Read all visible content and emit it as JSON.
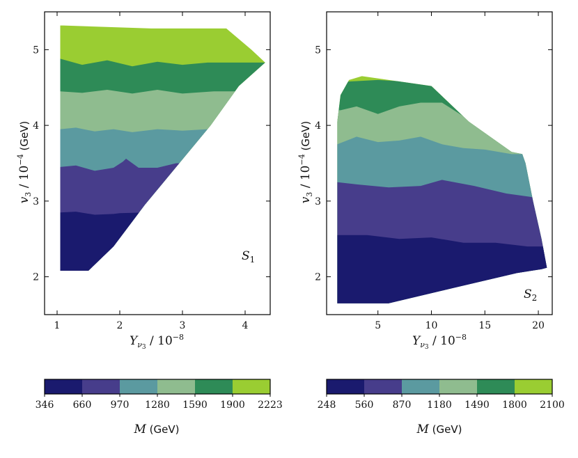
{
  "chart_data": [
    {
      "type": "heatmap",
      "subtype": "filled-contour",
      "panel_label": "S",
      "panel_label_sub": "1",
      "xlabel": "Y_{ν3} / 10^{-8}",
      "ylabel": "v_3 / 10^{-4} (GeV)",
      "xlim": [
        0.8,
        4.4
      ],
      "ylim": [
        1.5,
        5.5
      ],
      "xticks": [
        1,
        2,
        3,
        4
      ],
      "yticks": [
        2,
        3,
        4,
        5
      ],
      "region_outline": [
        [
          1.05,
          2.08
        ],
        [
          1.5,
          2.08
        ],
        [
          1.9,
          2.4
        ],
        [
          2.4,
          2.95
        ],
        [
          2.95,
          3.5
        ],
        [
          3.45,
          4.0
        ],
        [
          3.9,
          4.52
        ],
        [
          4.32,
          4.83
        ],
        [
          4.1,
          5.0
        ],
        [
          3.7,
          5.28
        ],
        [
          2.5,
          5.28
        ],
        [
          1.1,
          5.32
        ],
        [
          1.05,
          5.32
        ]
      ],
      "band_boundaries": [
        {
          "level_from": 346,
          "level_to": 660,
          "y_upper": [
            [
              1.05,
              2.85
            ],
            [
              1.3,
              2.86
            ],
            [
              1.6,
              2.82
            ],
            [
              1.9,
              2.83
            ],
            [
              2.0,
              2.84
            ],
            [
              2.4,
              2.85
            ]
          ]
        },
        {
          "level_from": 660,
          "level_to": 970,
          "y_upper": [
            [
              1.05,
              3.45
            ],
            [
              1.3,
              3.47
            ],
            [
              1.6,
              3.4
            ],
            [
              1.9,
              3.44
            ],
            [
              2.05,
              3.52
            ],
            [
              2.1,
              3.56
            ],
            [
              2.3,
              3.44
            ],
            [
              2.6,
              3.44
            ],
            [
              2.9,
              3.5
            ],
            [
              3.0,
              3.5
            ]
          ]
        },
        {
          "level_from": 970,
          "level_to": 1280,
          "y_upper": [
            [
              1.05,
              3.95
            ],
            [
              1.3,
              3.97
            ],
            [
              1.6,
              3.92
            ],
            [
              1.9,
              3.95
            ],
            [
              2.2,
              3.91
            ],
            [
              2.6,
              3.95
            ],
            [
              3.0,
              3.93
            ],
            [
              3.4,
              3.95
            ],
            [
              3.5,
              3.95
            ]
          ]
        },
        {
          "level_from": 1280,
          "level_to": 1590,
          "y_upper": [
            [
              1.05,
              4.45
            ],
            [
              1.4,
              4.43
            ],
            [
              1.8,
              4.47
            ],
            [
              2.2,
              4.42
            ],
            [
              2.6,
              4.47
            ],
            [
              3.0,
              4.42
            ],
            [
              3.5,
              4.45
            ],
            [
              3.9,
              4.45
            ]
          ]
        },
        {
          "level_from": 1590,
          "level_to": 1900,
          "y_upper": [
            [
              1.05,
              4.88
            ],
            [
              1.4,
              4.8
            ],
            [
              1.8,
              4.86
            ],
            [
              2.2,
              4.78
            ],
            [
              2.6,
              4.84
            ],
            [
              3.0,
              4.8
            ],
            [
              3.4,
              4.83
            ],
            [
              4.32,
              4.83
            ]
          ]
        },
        {
          "level_from": 1900,
          "level_to": 2223,
          "y_upper": []
        }
      ],
      "colorbar": {
        "levels": [
          346,
          660,
          970,
          1280,
          1590,
          1900,
          2223
        ],
        "tick_labels": [
          "346",
          "660",
          "970",
          "1280",
          "1590",
          "1900",
          "2223"
        ],
        "label": "M (GeV)",
        "colors": [
          "#1a1a6e",
          "#473d8b",
          "#5b9aa0",
          "#8fbc8f",
          "#2e8b57",
          "#9acd32"
        ]
      }
    },
    {
      "type": "heatmap",
      "subtype": "filled-contour",
      "panel_label": "S",
      "panel_label_sub": "2",
      "xlabel": "Y_{ν3} / 10^{-8}",
      "ylabel": "v_3 / 10^{-4} (GeV)",
      "xlim": [
        0.2,
        21.3
      ],
      "ylim": [
        1.5,
        5.5
      ],
      "xticks": [
        5,
        10,
        15,
        20
      ],
      "yticks": [
        2,
        3,
        4,
        5
      ],
      "region_outline": [
        [
          1.2,
          1.65
        ],
        [
          6,
          1.65
        ],
        [
          12,
          1.85
        ],
        [
          18,
          2.05
        ],
        [
          20.3,
          2.1
        ],
        [
          20.8,
          2.12
        ],
        [
          20.3,
          2.5
        ],
        [
          19.5,
          3.0
        ],
        [
          18.8,
          3.5
        ],
        [
          18.5,
          3.62
        ],
        [
          17.5,
          3.65
        ],
        [
          13.5,
          4.05
        ],
        [
          10,
          4.52
        ],
        [
          7.5,
          4.57
        ],
        [
          3.5,
          4.65
        ],
        [
          2.3,
          4.6
        ],
        [
          1.5,
          4.4
        ],
        [
          1.2,
          4.05
        ]
      ],
      "band_boundaries": [
        {
          "level_from": 248,
          "level_to": 560,
          "y_upper": [
            [
              1.2,
              2.55
            ],
            [
              4,
              2.55
            ],
            [
              7,
              2.5
            ],
            [
              10,
              2.52
            ],
            [
              13,
              2.45
            ],
            [
              16,
              2.45
            ],
            [
              19,
              2.4
            ],
            [
              20.6,
              2.4
            ]
          ]
        },
        {
          "level_from": 560,
          "level_to": 870,
          "y_upper": [
            [
              1.2,
              3.25
            ],
            [
              3,
              3.22
            ],
            [
              6,
              3.18
            ],
            [
              9,
              3.2
            ],
            [
              11,
              3.28
            ],
            [
              14,
              3.2
            ],
            [
              17,
              3.1
            ],
            [
              19.5,
              3.05
            ]
          ]
        },
        {
          "level_from": 870,
          "level_to": 1180,
          "y_upper": [
            [
              1.2,
              3.75
            ],
            [
              3,
              3.85
            ],
            [
              5,
              3.78
            ],
            [
              7,
              3.8
            ],
            [
              9,
              3.85
            ],
            [
              11,
              3.75
            ],
            [
              13,
              3.7
            ],
            [
              15,
              3.68
            ],
            [
              17.5,
              3.62
            ]
          ]
        },
        {
          "level_from": 1180,
          "level_to": 1490,
          "y_upper": [
            [
              1.5,
              4.2
            ],
            [
              3,
              4.25
            ],
            [
              5,
              4.15
            ],
            [
              7,
              4.25
            ],
            [
              9,
              4.3
            ],
            [
              11,
              4.3
            ],
            [
              13,
              4.12
            ]
          ]
        },
        {
          "level_from": 1490,
          "level_to": 1800,
          "y_upper": [
            [
              2.3,
              4.58
            ],
            [
              5,
              4.6
            ],
            [
              7.5,
              4.58
            ],
            [
              9.5,
              4.54
            ]
          ]
        },
        {
          "level_from": 1800,
          "level_to": 2100,
          "y_upper": []
        }
      ],
      "colorbar": {
        "levels": [
          248,
          560,
          870,
          1180,
          1490,
          1800,
          2100
        ],
        "tick_labels": [
          "248",
          "560",
          "870",
          "1180",
          "1490",
          "1800",
          "2100"
        ],
        "label": "M (GeV)",
        "colors": [
          "#1a1a6e",
          "#473d8b",
          "#5b9aa0",
          "#8fbc8f",
          "#2e8b57",
          "#9acd32"
        ]
      }
    }
  ]
}
